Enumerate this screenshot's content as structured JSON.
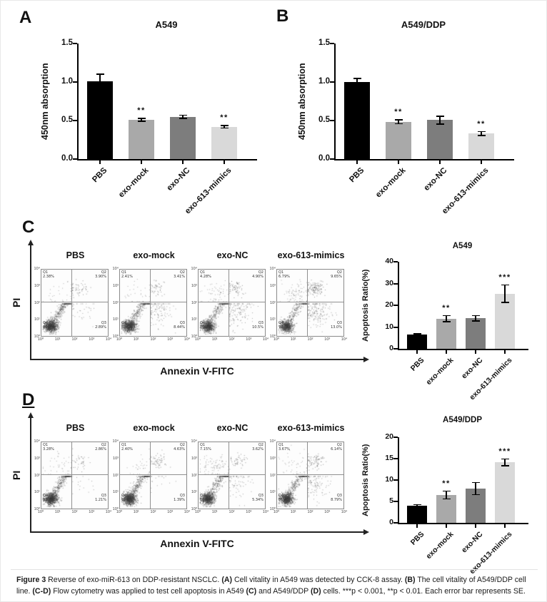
{
  "page": {
    "caption_segments": [
      {
        "text": "Figure 3 ",
        "bold": true
      },
      {
        "text": "Reverse of exo-miR-613 on DDP-resistant NSCLC. ",
        "bold": false
      },
      {
        "text": "(A)",
        "bold": true
      },
      {
        "text": " Cell vitality in A549 was detected by CCK-8 assay. ",
        "bold": false
      },
      {
        "text": "(B)",
        "bold": true
      },
      {
        "text": " The cell vitality of A549/DDP cell line. ",
        "bold": false
      },
      {
        "text": "(C-D)",
        "bold": true
      },
      {
        "text": " Flow cytometry was applied to test cell apoptosis in A549 ",
        "bold": false
      },
      {
        "text": "(C)",
        "bold": true
      },
      {
        "text": " and A549/DDP ",
        "bold": false
      },
      {
        "text": "(D)",
        "bold": true
      },
      {
        "text": " cells. ***p < 0.001, **p < 0.01. Each error bar represents SE.",
        "bold": false
      }
    ]
  },
  "bar_colors": [
    "#000000",
    "#a9a9a9",
    "#7d7d7d",
    "#d9d9d9"
  ],
  "flow_ticks": [
    "10⁰",
    "10¹",
    "10²",
    "10³",
    "10⁴"
  ],
  "panels": {
    "A": {
      "letter": "A"
    },
    "B": {
      "letter": "B"
    },
    "C": {
      "letter": "C",
      "flow": {
        "ylabel": "PI",
        "xlabel": "Annexin V-FITC",
        "plots": [
          {
            "title": "PBS",
            "quadrants": {
              "Q1": "2.38%",
              "Q2": "3.90%",
              "Q3": "2.89%",
              "Q4": "90.8%"
            }
          },
          {
            "title": "exo-mock",
            "quadrants": {
              "Q1": "2.41%",
              "Q2": "3.41%",
              "Q3": "8.44%",
              "Q4": "85.7%"
            }
          },
          {
            "title": "exo-NC",
            "quadrants": {
              "Q1": "4.28%",
              "Q2": "4.90%",
              "Q3": "10.5%",
              "Q4": "80.3%"
            }
          },
          {
            "title": "exo-613-mimics",
            "quadrants": {
              "Q1": "6.79%",
              "Q2": "9.65%",
              "Q3": "13.0%",
              "Q4": "70.5%"
            }
          }
        ]
      }
    },
    "D": {
      "letter": "D",
      "flow": {
        "ylabel": "PI",
        "xlabel": "Annexin V-FITC",
        "plots": [
          {
            "title": "PBS",
            "quadrants": {
              "Q1": "3.28%",
              "Q2": "2.86%",
              "Q3": "1.21%",
              "Q4": "92.7%"
            }
          },
          {
            "title": "exo-mock",
            "quadrants": {
              "Q1": "2.40%",
              "Q2": "4.63%",
              "Q3": "1.39%",
              "Q4": "91.6%"
            }
          },
          {
            "title": "exo-NC",
            "quadrants": {
              "Q1": "7.15%",
              "Q2": "3.62%",
              "Q3": "5.34%",
              "Q4": "83.9%"
            }
          },
          {
            "title": "exo-613-mimics",
            "quadrants": {
              "Q1": "3.67%",
              "Q2": "6.14%",
              "Q3": "8.79%",
              "Q4": "81.4%"
            }
          }
        ]
      }
    }
  },
  "chart_data": [
    {
      "id": "A",
      "type": "bar",
      "title": "A549",
      "xlabel": "",
      "ylabel": "450nm absorption",
      "categories": [
        "PBS",
        "exo-mock",
        "exo-NC",
        "exo-613-mimics"
      ],
      "values": [
        1.01,
        0.51,
        0.55,
        0.42
      ],
      "errors": [
        0.09,
        0.02,
        0.02,
        0.015
      ],
      "sig": [
        "",
        "**",
        "",
        "**"
      ],
      "ylim": [
        0,
        1.5
      ],
      "yticks": [
        0,
        0.5,
        1.0,
        1.5
      ],
      "ytick_labels": [
        "0.0",
        "0.5",
        "1.0",
        "1.5"
      ],
      "grid": false,
      "legend": "none"
    },
    {
      "id": "B",
      "type": "bar",
      "title": "A549/DDP",
      "xlabel": "",
      "ylabel": "450nm absorption",
      "categories": [
        "PBS",
        "exo-mock",
        "exo-NC",
        "exo-613-mimics"
      ],
      "values": [
        1.0,
        0.485,
        0.505,
        0.33
      ],
      "errors": [
        0.045,
        0.025,
        0.05,
        0.025
      ],
      "sig": [
        "",
        "**",
        "",
        "**"
      ],
      "ylim": [
        0,
        1.5
      ],
      "yticks": [
        0,
        0.5,
        1.0,
        1.5
      ],
      "ytick_labels": [
        "0.0",
        "0.5",
        "1.0",
        "1.5"
      ],
      "grid": false,
      "legend": "none"
    },
    {
      "id": "C",
      "type": "bar",
      "title": "A549",
      "xlabel": "",
      "ylabel": "Apoptosis Ratio(%)",
      "categories": [
        "PBS",
        "exo-mock",
        "exo-NC",
        "exo-613-mimics"
      ],
      "values": [
        6.5,
        13.8,
        14.0,
        25.3
      ],
      "errors": [
        0.4,
        1.4,
        1.2,
        4.0
      ],
      "sig": [
        "",
        "**",
        "",
        "***"
      ],
      "ylim": [
        0,
        40
      ],
      "yticks": [
        0,
        10,
        20,
        30,
        40
      ],
      "ytick_labels": [
        "0",
        "10",
        "20",
        "30",
        "40"
      ],
      "grid": false,
      "legend": "none"
    },
    {
      "id": "D",
      "type": "bar",
      "title": "A549/DDP",
      "xlabel": "",
      "ylabel": "Apoptosis Ratio(%)",
      "categories": [
        "PBS",
        "exo-mock",
        "exo-NC",
        "exo-613-mimics"
      ],
      "values": [
        4.0,
        6.5,
        8.0,
        14.1
      ],
      "errors": [
        0.25,
        0.9,
        1.4,
        0.8
      ],
      "sig": [
        "",
        "**",
        "",
        "***"
      ],
      "ylim": [
        0,
        20
      ],
      "yticks": [
        0,
        5,
        10,
        15,
        20
      ],
      "ytick_labels": [
        "0",
        "5",
        "10",
        "15",
        "20"
      ],
      "grid": false,
      "legend": "none"
    }
  ]
}
